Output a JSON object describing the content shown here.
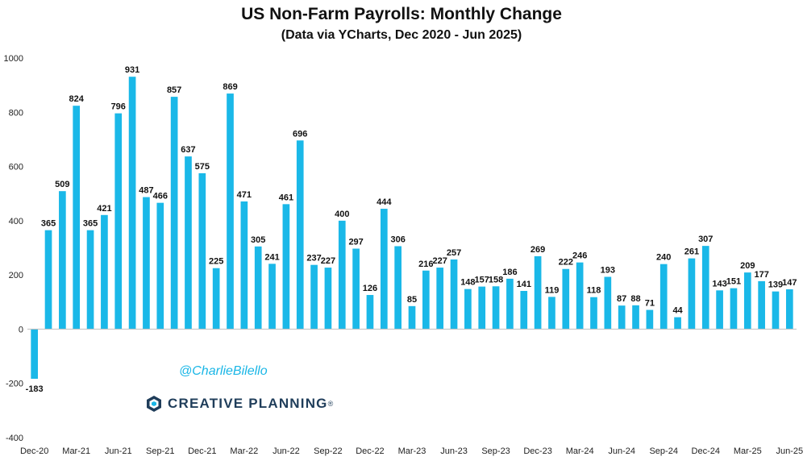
{
  "header": {
    "title": "US Non-Farm Payrolls: Monthly Change",
    "subtitle": "(Data via YCharts, Dec 2020 - Jun 2025)"
  },
  "watermark": {
    "handle": "@CharlieBilello",
    "logo_text": "CREATIVE PLANNING",
    "logo_mark": "®",
    "logo_icon": "creative-planning-logo-icon"
  },
  "colors": {
    "bar": "#1ab8e8",
    "handle": "#19b6e6",
    "logo": "#1f3d5a"
  },
  "chart_data": {
    "type": "bar",
    "title": "US Non-Farm Payrolls: Monthly Change",
    "subtitle": "(Data via YCharts, Dec 2020 - Jun 2025)",
    "xlabel": "",
    "ylabel": "",
    "ylim": [
      -400,
      1000
    ],
    "yticks": [
      -400,
      -200,
      0,
      200,
      400,
      600,
      800,
      1000
    ],
    "grid": false,
    "x_tick_labels": [
      "Dec-20",
      "Mar-21",
      "Jun-21",
      "Sep-21",
      "Dec-21",
      "Mar-22",
      "Jun-22",
      "Sep-22",
      "Dec-22",
      "Mar-23",
      "Jun-23",
      "Sep-23",
      "Dec-23",
      "Mar-24",
      "Jun-24",
      "Sep-24",
      "Dec-24",
      "Mar-25",
      "Jun-25"
    ],
    "categories": [
      "Dec-20",
      "Jan-21",
      "Feb-21",
      "Mar-21",
      "Apr-21",
      "May-21",
      "Jun-21",
      "Jul-21",
      "Aug-21",
      "Sep-21",
      "Oct-21",
      "Nov-21",
      "Dec-21",
      "Jan-22",
      "Feb-22",
      "Mar-22",
      "Apr-22",
      "May-22",
      "Jun-22",
      "Jul-22",
      "Aug-22",
      "Sep-22",
      "Oct-22",
      "Nov-22",
      "Dec-22",
      "Jan-23",
      "Feb-23",
      "Mar-23",
      "Apr-23",
      "May-23",
      "Jun-23",
      "Jul-23",
      "Aug-23",
      "Sep-23",
      "Oct-23",
      "Nov-23",
      "Dec-23",
      "Jan-24",
      "Feb-24",
      "Mar-24",
      "Apr-24",
      "May-24",
      "Jun-24",
      "Jul-24",
      "Aug-24",
      "Sep-24",
      "Oct-24",
      "Nov-24",
      "Dec-24",
      "Jan-25",
      "Feb-25",
      "Mar-25",
      "Apr-25",
      "May-25",
      "Jun-25"
    ],
    "values": [
      -183,
      365,
      509,
      824,
      365,
      421,
      796,
      931,
      487,
      466,
      857,
      637,
      575,
      225,
      869,
      471,
      305,
      241,
      461,
      696,
      237,
      227,
      400,
      297,
      126,
      444,
      306,
      85,
      216,
      227,
      257,
      148,
      157,
      158,
      186,
      141,
      269,
      119,
      222,
      246,
      118,
      193,
      87,
      88,
      71,
      240,
      44,
      261,
      307,
      143,
      151,
      209,
      177,
      139,
      147
    ]
  }
}
